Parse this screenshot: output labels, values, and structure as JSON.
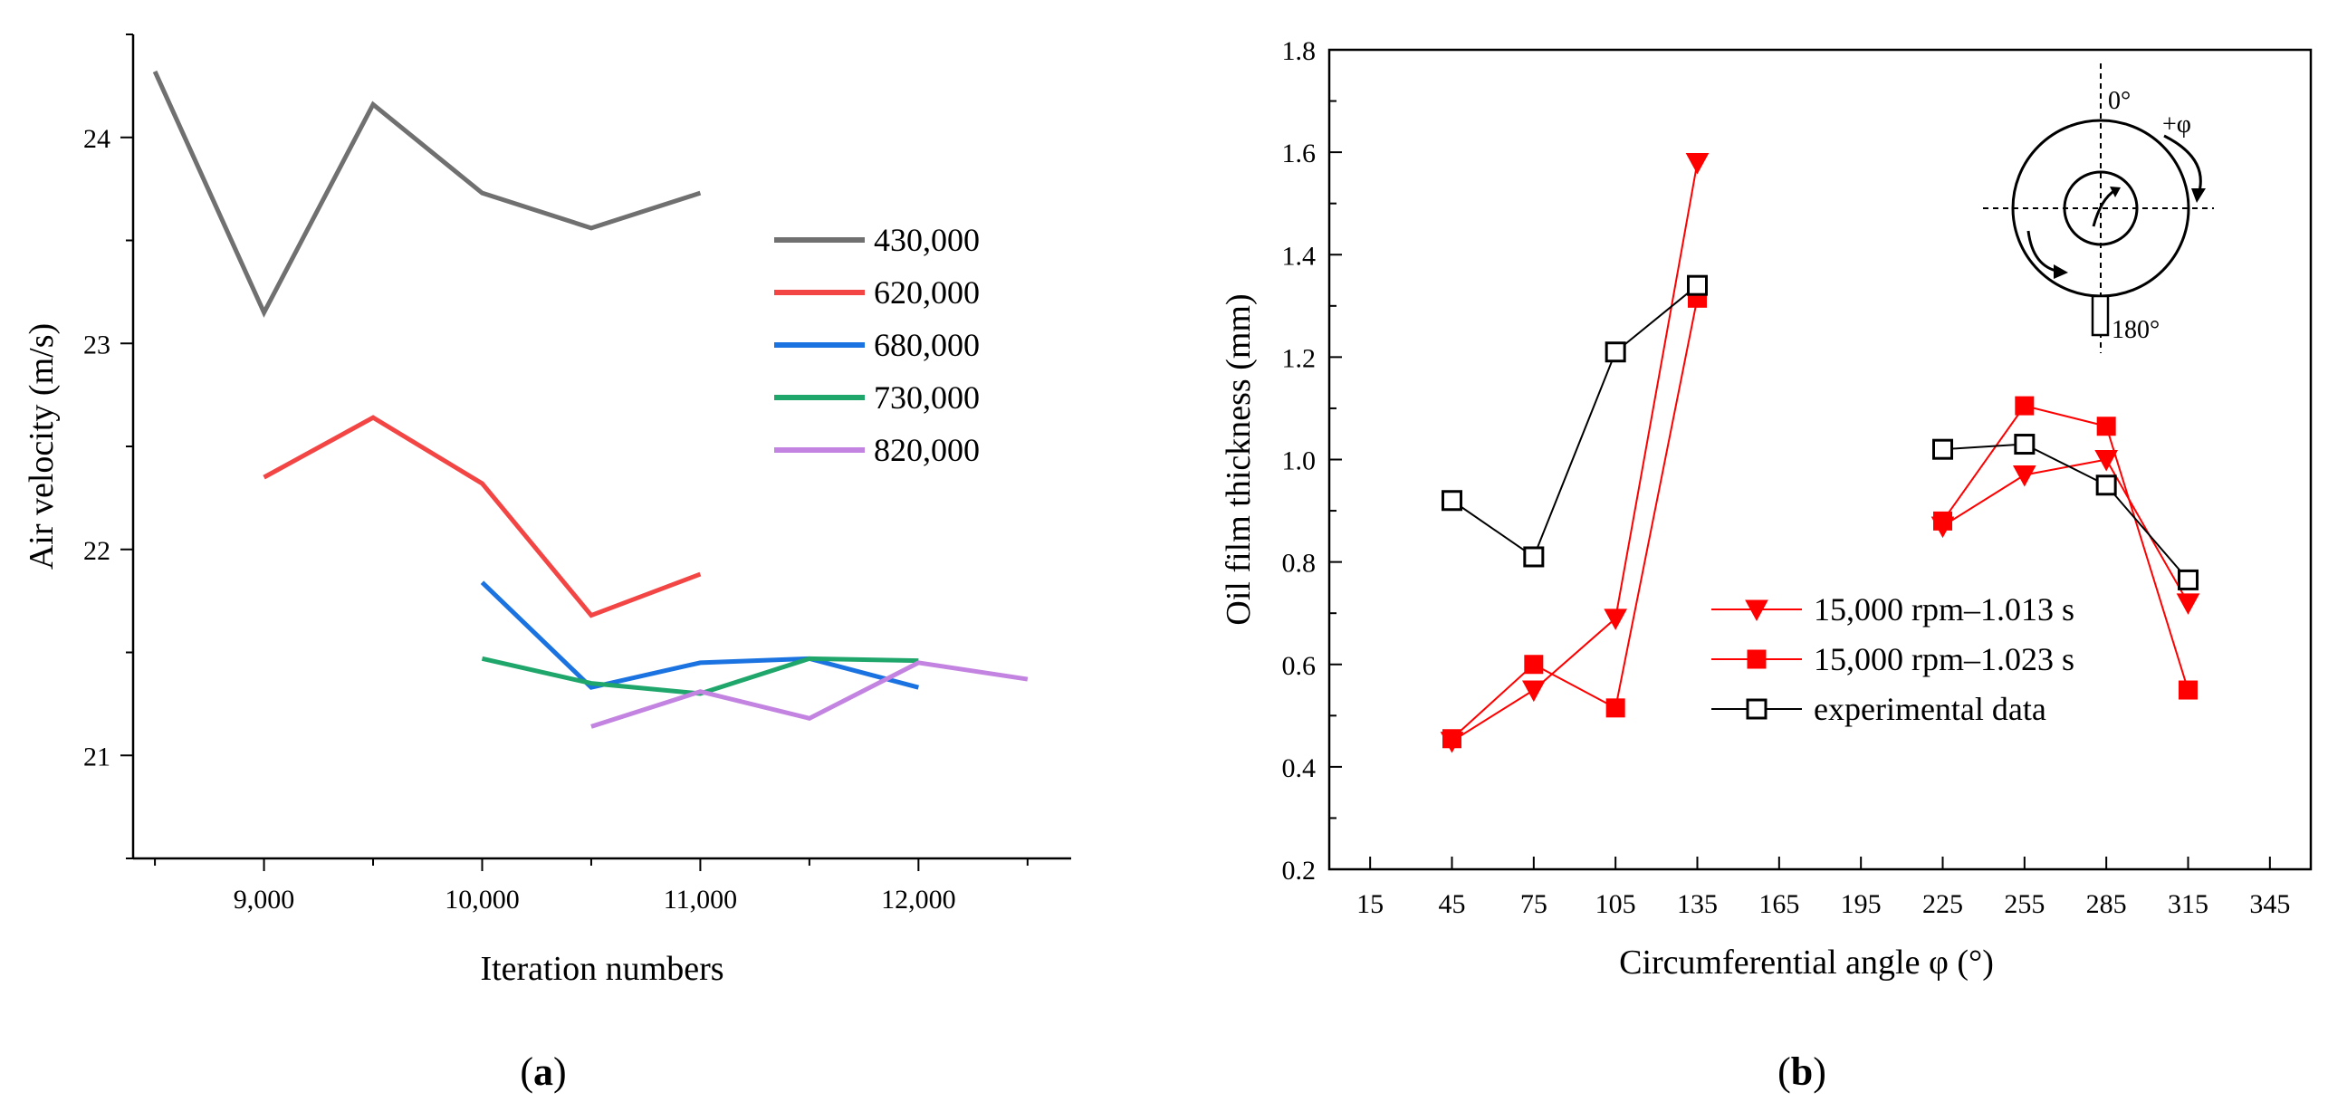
{
  "chart_data": [
    {
      "type": "line",
      "panel_label_open": "(",
      "panel_label_letter": "a",
      "panel_label_close": ")",
      "xlabel": "Iteration   numbers",
      "ylabel": "Air  velocity (m/s)",
      "xlim": [
        8400,
        12700
      ],
      "ylim": [
        20.5,
        24.5
      ],
      "xticks": [
        9000,
        10000,
        11000,
        12000
      ],
      "xtick_labels": [
        "9,000",
        "10,000",
        "11,000",
        "12,000"
      ],
      "yticks": [
        21,
        22,
        23,
        24
      ],
      "ytick_labels": [
        "21",
        "22",
        "23",
        "24"
      ],
      "legend_position": "right-center",
      "series": [
        {
          "name": "430,000",
          "color": "#707070",
          "x": [
            8500,
            9000,
            9500,
            10000,
            10500,
            11000
          ],
          "y": [
            24.32,
            23.15,
            24.16,
            23.73,
            23.56,
            23.73
          ]
        },
        {
          "name": "620,000",
          "color": "#f44545",
          "x": [
            9000,
            9500,
            10000,
            10500,
            11000
          ],
          "y": [
            22.35,
            22.64,
            22.32,
            21.68,
            21.88
          ]
        },
        {
          "name": "680,000",
          "color": "#1a73e0",
          "x": [
            10000,
            10500,
            11000,
            11500,
            12000
          ],
          "y": [
            21.84,
            21.33,
            21.45,
            21.47,
            21.33
          ]
        },
        {
          "name": "730,000",
          "color": "#1fa66b",
          "x": [
            10000,
            10500,
            11000,
            11500,
            12000
          ],
          "y": [
            21.47,
            21.35,
            21.3,
            21.47,
            21.46
          ]
        },
        {
          "name": "820,000",
          "color": "#c383e0",
          "x": [
            10500,
            11000,
            11500,
            12000,
            12500
          ],
          "y": [
            21.14,
            21.31,
            21.18,
            21.45,
            21.37
          ]
        }
      ]
    },
    {
      "type": "line",
      "panel_label_open": "(",
      "panel_label_letter": "b",
      "panel_label_close": ")",
      "xlabel": "Circumferential  angle  φ (°)",
      "ylabel": "Oil  film  thickness (mm)",
      "xlim": [
        0,
        360
      ],
      "ylim": [
        0.2,
        1.8
      ],
      "xticks": [
        15,
        45,
        75,
        105,
        135,
        165,
        195,
        225,
        255,
        285,
        315,
        345
      ],
      "xtick_labels": [
        "15",
        "45",
        "75",
        "105",
        "135",
        "165",
        "195",
        "225",
        "255",
        "285",
        "315",
        "345"
      ],
      "yticks": [
        0.2,
        0.4,
        0.6,
        0.8,
        1.0,
        1.2,
        1.4,
        1.6,
        1.8
      ],
      "ytick_labels": [
        "0.2",
        "0.4",
        "0.6",
        "0.8",
        "1.0",
        "1.2",
        "1.4",
        "1.6",
        "1.8"
      ],
      "legend_position": "lower-right",
      "series": [
        {
          "name": "15,000 rpm–1.013 s",
          "color": "#ff0000",
          "marker": "triangle-down-filled",
          "segments": [
            {
              "x": [
                45,
                75,
                105,
                135
              ],
              "y": [
                0.45,
                0.55,
                0.69,
                1.58
              ]
            },
            {
              "x": [
                225,
                255,
                285,
                315
              ],
              "y": [
                0.87,
                0.97,
                1.0,
                0.72
              ]
            }
          ]
        },
        {
          "name": "15,000 rpm–1.023 s",
          "color": "#ff0000",
          "marker": "square-filled",
          "segments": [
            {
              "x": [
                45,
                75,
                105,
                135
              ],
              "y": [
                0.455,
                0.6,
                0.515,
                1.315
              ]
            },
            {
              "x": [
                225,
                255,
                285,
                315
              ],
              "y": [
                0.88,
                1.105,
                1.065,
                0.55
              ]
            }
          ]
        },
        {
          "name": "experimental data",
          "color": "#000000",
          "marker": "square-open",
          "segments": [
            {
              "x": [
                45,
                75,
                105,
                135
              ],
              "y": [
                0.92,
                0.81,
                1.21,
                1.34
              ]
            },
            {
              "x": [
                225,
                255,
                285,
                315
              ],
              "y": [
                1.02,
                1.03,
                0.95,
                0.765
              ]
            }
          ]
        }
      ],
      "inset_labels": {
        "top": "0°",
        "direction": "+φ",
        "bottom": "180°"
      }
    }
  ]
}
